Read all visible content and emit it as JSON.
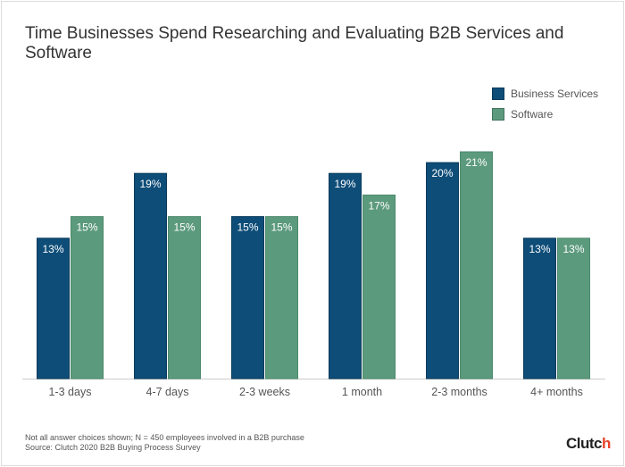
{
  "chart_data": {
    "type": "bar",
    "title": "Time Businesses Spend Researching and Evaluating B2B Services and Software",
    "categories": [
      "1-3 days",
      "4-7 days",
      "2-3 weeks",
      "1 month",
      "2-3 months",
      "4+ months"
    ],
    "series": [
      {
        "name": "Business Services",
        "values": [
          13,
          19,
          15,
          19,
          20,
          13
        ],
        "color": "#0e4d78"
      },
      {
        "name": "Software",
        "values": [
          15,
          15,
          15,
          17,
          21,
          13
        ],
        "color": "#5c9a7d"
      }
    ],
    "value_suffix": "%",
    "ylim": [
      0,
      21
    ],
    "grid": false,
    "legend": "top-right"
  },
  "footer": {
    "note": "Not all answer choices shown; N = 450 employees involved in a B2B purchase",
    "source": "Source: Clutch 2020 B2B Buying Process Survey",
    "logo": "Clutch"
  }
}
